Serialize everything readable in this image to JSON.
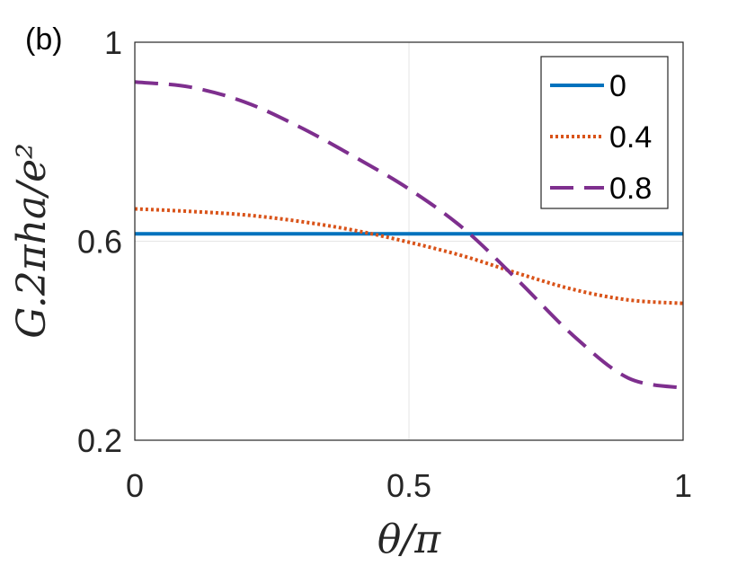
{
  "panel_label": "(b)",
  "chart_data": {
    "type": "line",
    "xlabel": "θ/π",
    "ylabel": "G.2πha/e²",
    "xlim": [
      0,
      1
    ],
    "ylim": [
      0.2,
      1
    ],
    "x_ticks": [
      "0",
      "0.5",
      "1"
    ],
    "y_ticks": [
      "0.2",
      "0.6",
      "1"
    ],
    "grid": true,
    "legend_position": "top-right",
    "series": [
      {
        "name": "0",
        "color": "#0072bd",
        "style": "solid",
        "x": [
          0,
          0.1,
          0.2,
          0.3,
          0.4,
          0.5,
          0.6,
          0.7,
          0.8,
          0.9,
          1.0
        ],
        "y": [
          0.615,
          0.615,
          0.615,
          0.615,
          0.615,
          0.615,
          0.615,
          0.615,
          0.615,
          0.615,
          0.615
        ]
      },
      {
        "name": "0.4",
        "color": "#d95319",
        "style": "dotted",
        "x": [
          0,
          0.1,
          0.2,
          0.3,
          0.4,
          0.5,
          0.6,
          0.7,
          0.8,
          0.9,
          1.0
        ],
        "y": [
          0.665,
          0.66,
          0.653,
          0.64,
          0.622,
          0.598,
          0.57,
          0.535,
          0.503,
          0.482,
          0.475
        ]
      },
      {
        "name": "0.8",
        "color": "#7e2f8e",
        "style": "dashed",
        "x": [
          0,
          0.1,
          0.2,
          0.3,
          0.4,
          0.5,
          0.6,
          0.7,
          0.8,
          0.9,
          1.0
        ],
        "y": [
          0.92,
          0.91,
          0.88,
          0.83,
          0.77,
          0.705,
          0.625,
          0.52,
          0.41,
          0.325,
          0.305
        ]
      }
    ]
  }
}
